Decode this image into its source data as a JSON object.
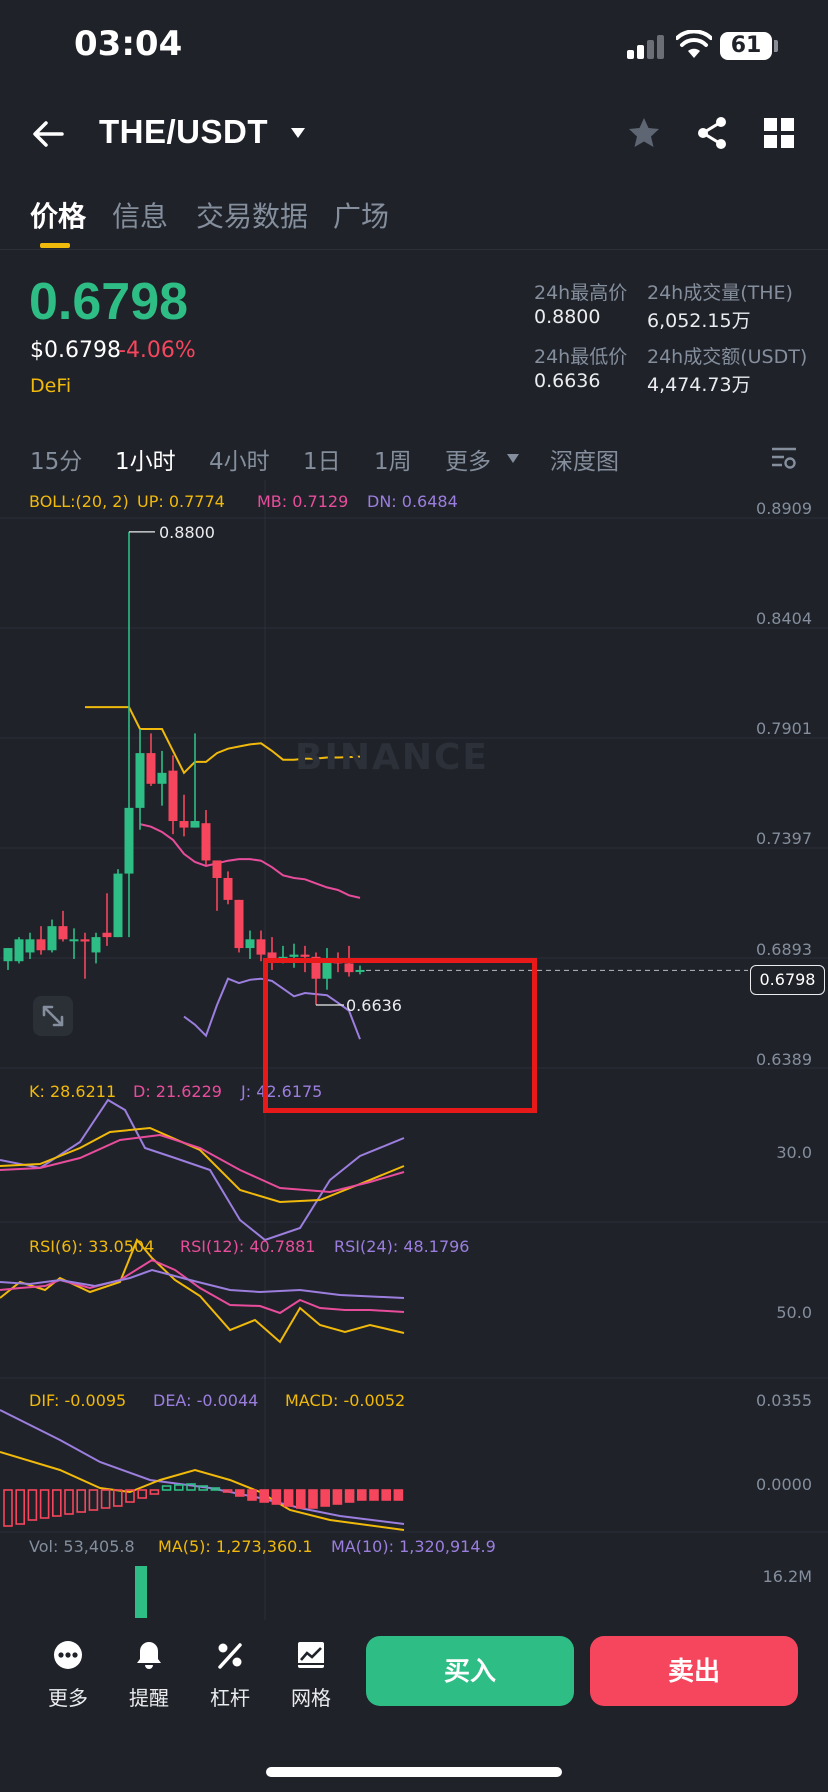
{
  "status_bar": {
    "time": "03:04",
    "battery": "61"
  },
  "header": {
    "pair": "THE/USDT"
  },
  "tabs": [
    {
      "label": "价格",
      "active": true
    },
    {
      "label": "信息",
      "active": false
    },
    {
      "label": "交易数据",
      "active": false
    },
    {
      "label": "广场",
      "active": false
    }
  ],
  "ticker": {
    "last_price": "0.6798",
    "usd_price": "$0.6798",
    "change": "-4.06%",
    "tag": "DeFi",
    "high_label": "24h最高价",
    "high_value": "0.8800",
    "low_label": "24h最低价",
    "low_value": "0.6636",
    "vol_label": "24h成交量(THE)",
    "vol_value": "6,052.15万",
    "amount_label": "24h成交额(USDT)",
    "amount_value": "4,474.73万"
  },
  "intervals": [
    {
      "label": "15分",
      "active": false
    },
    {
      "label": "1小时",
      "active": true
    },
    {
      "label": "4小时",
      "active": false
    },
    {
      "label": "1日",
      "active": false
    },
    {
      "label": "1周",
      "active": false
    },
    {
      "label": "更多",
      "active": false
    },
    {
      "label": "深度图",
      "active": false
    }
  ],
  "indicators": {
    "boll": {
      "params": "BOLL:(20, 2)",
      "up": "UP: 0.7774",
      "mb": "MB: 0.7129",
      "dn": "DN: 0.6484"
    },
    "kdj": {
      "k": "K: 28.6211",
      "d": "D: 21.6229",
      "j": "J: 42.6175"
    },
    "rsi": {
      "r6": "RSI(6): 33.0504",
      "r12": "RSI(12): 40.7881",
      "r24": "RSI(24): 48.1796"
    },
    "macd": {
      "dif": "DIF: -0.0095",
      "dea": "DEA: -0.0044",
      "macd": "MACD: -0.0052"
    },
    "vol": {
      "vol": "Vol: 53,405.8",
      "ma5": "MA(5): 1,273,360.1",
      "ma10": "MA(10): 1,320,914.9"
    }
  },
  "axes": {
    "price": [
      "0.8909",
      "0.8404",
      "0.7901",
      "0.7397",
      "0.6893",
      "0.6389"
    ],
    "kdj": "30.0",
    "rsi": "50.0",
    "macd": [
      "0.0355",
      "0.0000"
    ],
    "vol": "16.2M"
  },
  "chart_marks": {
    "high": "0.8800",
    "low": "0.6636",
    "current": "0.6798"
  },
  "watermark": "BINANCE",
  "colors": {
    "up": "#2ebd85",
    "down": "#f6465d",
    "accent": "#f0b90b",
    "mb": "#e84d9c",
    "dn": "#9b7ede"
  },
  "chart_data": {
    "type": "candlestick",
    "interval": "1小时",
    "ylim": [
      0.6389,
      0.8909
    ],
    "candles": [
      {
        "o": 0.684,
        "h": 0.69,
        "l": 0.68,
        "c": 0.69
      },
      {
        "o": 0.684,
        "h": 0.695,
        "l": 0.683,
        "c": 0.694
      },
      {
        "o": 0.688,
        "h": 0.697,
        "l": 0.685,
        "c": 0.694
      },
      {
        "o": 0.694,
        "h": 0.7,
        "l": 0.687,
        "c": 0.689
      },
      {
        "o": 0.689,
        "h": 0.703,
        "l": 0.688,
        "c": 0.7
      },
      {
        "o": 0.7,
        "h": 0.707,
        "l": 0.693,
        "c": 0.694
      },
      {
        "o": 0.694,
        "h": 0.699,
        "l": 0.685,
        "c": 0.694
      },
      {
        "o": 0.694,
        "h": 0.697,
        "l": 0.676,
        "c": 0.693
      },
      {
        "o": 0.688,
        "h": 0.697,
        "l": 0.683,
        "c": 0.695
      },
      {
        "o": 0.697,
        "h": 0.715,
        "l": 0.691,
        "c": 0.695
      },
      {
        "o": 0.695,
        "h": 0.726,
        "l": 0.695,
        "c": 0.724
      },
      {
        "o": 0.724,
        "h": 0.88,
        "l": 0.695,
        "c": 0.754
      },
      {
        "o": 0.754,
        "h": 0.79,
        "l": 0.744,
        "c": 0.779
      },
      {
        "o": 0.779,
        "h": 0.788,
        "l": 0.764,
        "c": 0.765
      },
      {
        "o": 0.765,
        "h": 0.78,
        "l": 0.755,
        "c": 0.77
      },
      {
        "o": 0.771,
        "h": 0.778,
        "l": 0.742,
        "c": 0.748
      },
      {
        "o": 0.748,
        "h": 0.76,
        "l": 0.741,
        "c": 0.745
      },
      {
        "o": 0.745,
        "h": 0.788,
        "l": 0.745,
        "c": 0.748
      },
      {
        "o": 0.747,
        "h": 0.753,
        "l": 0.728,
        "c": 0.73
      },
      {
        "o": 0.73,
        "h": 0.73,
        "l": 0.707,
        "c": 0.722
      },
      {
        "o": 0.722,
        "h": 0.725,
        "l": 0.71,
        "c": 0.712
      },
      {
        "o": 0.712,
        "h": 0.712,
        "l": 0.688,
        "c": 0.69
      },
      {
        "o": 0.69,
        "h": 0.698,
        "l": 0.685,
        "c": 0.694
      },
      {
        "o": 0.694,
        "h": 0.698,
        "l": 0.684,
        "c": 0.687
      },
      {
        "o": 0.688,
        "h": 0.695,
        "l": 0.68,
        "c": 0.685
      },
      {
        "o": 0.685,
        "h": 0.691,
        "l": 0.683,
        "c": 0.686
      },
      {
        "o": 0.686,
        "h": 0.692,
        "l": 0.681,
        "c": 0.687
      },
      {
        "o": 0.687,
        "h": 0.691,
        "l": 0.679,
        "c": 0.686
      },
      {
        "o": 0.686,
        "h": 0.688,
        "l": 0.664,
        "c": 0.676
      },
      {
        "o": 0.676,
        "h": 0.69,
        "l": 0.671,
        "c": 0.685
      },
      {
        "o": 0.685,
        "h": 0.688,
        "l": 0.679,
        "c": 0.683
      },
      {
        "o": 0.683,
        "h": 0.691,
        "l": 0.677,
        "c": 0.679
      },
      {
        "o": 0.68,
        "h": 0.682,
        "l": 0.678,
        "c": 0.68
      }
    ],
    "boll_up": [
      0.8,
      0.8,
      0.8,
      0.8,
      0.8,
      0.79,
      0.79,
      0.79,
      0.78,
      0.77,
      0.775,
      0.775,
      0.779,
      0.781,
      0.782,
      0.783,
      0.7835,
      0.78,
      0.776,
      0.776,
      0.7765,
      0.7765,
      0.777,
      0.777,
      0.7772,
      0.7774
    ],
    "boll_mb": [
      0.7466,
      0.7454,
      0.743,
      0.7394,
      0.733,
      0.7293,
      0.7275,
      0.7287,
      0.7299,
      0.7306,
      0.7306,
      0.7299,
      0.7269,
      0.7232,
      0.722,
      0.7214,
      0.7195,
      0.7177,
      0.7165,
      0.7141,
      0.7129
    ],
    "boll_dn": [
      0.6587,
      0.655,
      0.65,
      0.664,
      0.676,
      0.674,
      0.6755,
      0.676,
      0.675,
      0.6715,
      0.668,
      0.6695,
      0.669,
      0.6685,
      0.665,
      0.6614,
      0.6484
    ]
  }
}
